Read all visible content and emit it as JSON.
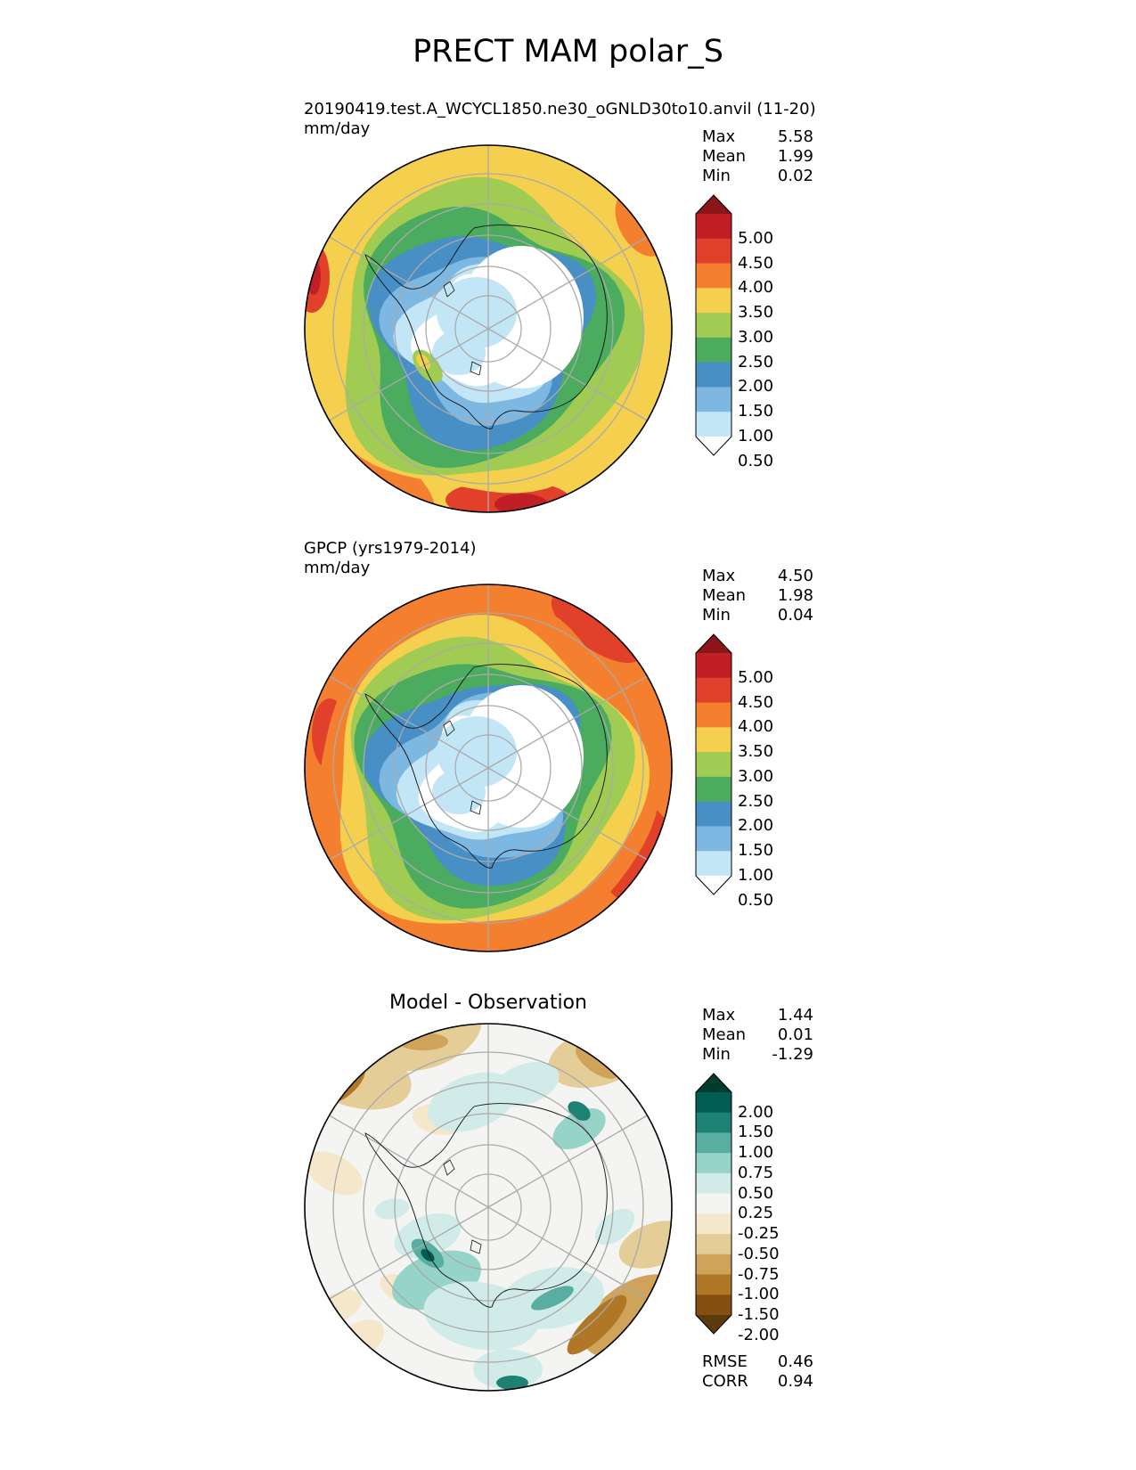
{
  "title": "PRECT MAM polar_S",
  "panels": [
    {
      "id": "test",
      "title_line1": "20190419.test.A_WCYCL1850.ne30_oGNLD30to10.anvil (11-20)",
      "title_line2": "mm/day",
      "stats": [
        {
          "label": "Max",
          "value": "5.58"
        },
        {
          "label": "Mean",
          "value": "1.99"
        },
        {
          "label": "Min",
          "value": "0.02"
        }
      ],
      "colorbar": {
        "labels": [
          "5.00",
          "4.50",
          "4.00",
          "3.50",
          "3.00",
          "2.50",
          "2.00",
          "1.50",
          "1.00",
          "0.50"
        ],
        "colors": [
          "#ffffff",
          "#c3e6f7",
          "#7db8e3",
          "#478fc4",
          "#4bab5e",
          "#a0cc53",
          "#f5d04e",
          "#f4802f",
          "#e1412b",
          "#c01f26",
          "#8c1519"
        ]
      }
    },
    {
      "id": "reference",
      "title_line1": "GPCP (yrs1979-2014)",
      "title_line2": "mm/day",
      "stats": [
        {
          "label": "Max",
          "value": "4.50"
        },
        {
          "label": "Mean",
          "value": "1.98"
        },
        {
          "label": "Min",
          "value": "0.04"
        }
      ],
      "colorbar": {
        "labels": [
          "5.00",
          "4.50",
          "4.00",
          "3.50",
          "3.00",
          "2.50",
          "2.00",
          "1.50",
          "1.00",
          "0.50"
        ],
        "colors": [
          "#ffffff",
          "#c3e6f7",
          "#7db8e3",
          "#478fc4",
          "#4bab5e",
          "#a0cc53",
          "#f5d04e",
          "#f4802f",
          "#e1412b",
          "#c01f26",
          "#8c1519"
        ]
      }
    },
    {
      "id": "difference",
      "title_center": "Model - Observation",
      "stats": [
        {
          "label": "Max",
          "value": "1.44"
        },
        {
          "label": "Mean",
          "value": "0.01"
        },
        {
          "label": "Min",
          "value": "-1.29"
        }
      ],
      "footer_stats": [
        {
          "label": "RMSE",
          "value": "0.46"
        },
        {
          "label": "CORR",
          "value": "0.94"
        }
      ],
      "colorbar": {
        "labels": [
          "2.00",
          "1.50",
          "1.00",
          "0.75",
          "0.50",
          "0.25",
          "-0.25",
          "-0.50",
          "-0.75",
          "-1.00",
          "-1.50",
          "-2.00"
        ],
        "colors": [
          "#5b3a0b",
          "#844f10",
          "#b07727",
          "#cfa35a",
          "#e5cd97",
          "#f5e7c9",
          "#f4f4f2",
          "#d1ece8",
          "#96d3c8",
          "#58aea1",
          "#1d8274",
          "#015d52",
          "#003c30"
        ]
      }
    }
  ]
}
